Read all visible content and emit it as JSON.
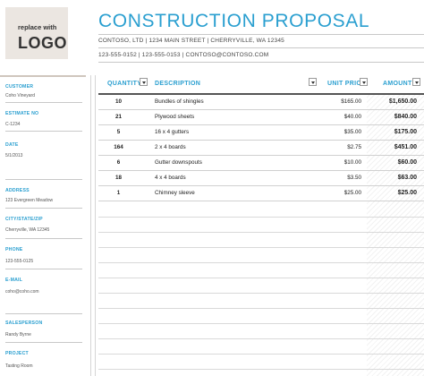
{
  "logo": {
    "top_text": "replace with",
    "main_text": "LOGO"
  },
  "title": "CONSTRUCTION PROPOSAL",
  "company": {
    "address_line": "CONTOSO, LTD  |  1234 MAIN STREET  |  CHERRYVILLE, WA 12345",
    "contact_line": "123-555-0152  |  123-555-0153  |  CONTOSO@CONTOSO.COM"
  },
  "sidebar": {
    "customer_label": "CUSTOMER",
    "customer_value": "Coho Vineyard",
    "estimate_label": "ESTIMATE NO",
    "estimate_value": "C-1234",
    "date_label": "DATE",
    "date_value": "5/1/2013",
    "address_label": "ADDRESS",
    "address_value": "123 Evergreen Meadow",
    "city_label": "CITY/STATE/ZIP",
    "city_value": "Cherryville, WA 12345",
    "phone_label": "PHONE",
    "phone_value": "123-555-0125",
    "email_label": "E-MAIL",
    "email_value": "coho@coho.com",
    "salesperson_label": "SALESPERSON",
    "salesperson_value": "Randy Byrne",
    "project_label": "PROJECT",
    "project_value": "Tasting Room"
  },
  "table": {
    "headers": {
      "quantity": "QUANTITY",
      "description": "DESCRIPTION",
      "unit_price": "UNIT PRIC",
      "amount": "AMOUNT"
    },
    "rows": [
      {
        "qty": "10",
        "desc": "Bundles of shingles",
        "price": "$165.00",
        "amount": "$1,650.00"
      },
      {
        "qty": "21",
        "desc": "Plywood sheets",
        "price": "$40.00",
        "amount": "$840.00"
      },
      {
        "qty": "5",
        "desc": "16 x 4 gutters",
        "price": "$35.00",
        "amount": "$175.00"
      },
      {
        "qty": "164",
        "desc": "2 x 4 boards",
        "price": "$2.75",
        "amount": "$451.00"
      },
      {
        "qty": "6",
        "desc": "Gutter downspouts",
        "price": "$10.00",
        "amount": "$60.00"
      },
      {
        "qty": "18",
        "desc": "4 x 4 boards",
        "price": "$3.50",
        "amount": "$63.00"
      },
      {
        "qty": "1",
        "desc": "Chimney sleeve",
        "price": "$25.00",
        "amount": "$25.00"
      }
    ]
  }
}
